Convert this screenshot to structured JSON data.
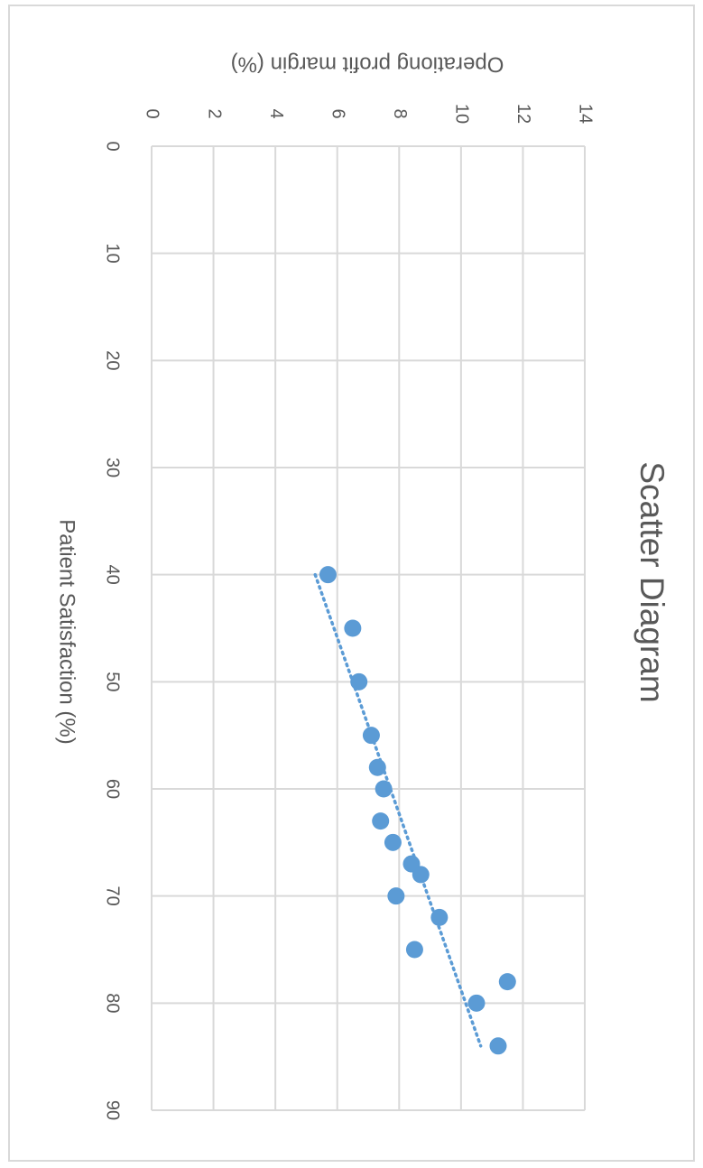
{
  "chart_data": {
    "type": "scatter",
    "title": "Scatter Diagram",
    "xlabel": "Patient Satisfaction (%)",
    "ylabel": "Operationg profit margin (%)",
    "xlim": [
      0,
      90
    ],
    "ylim": [
      0,
      14
    ],
    "x_ticks": [
      "0",
      "10",
      "20",
      "30",
      "40",
      "50",
      "60",
      "70",
      "80",
      "90"
    ],
    "y_ticks": [
      "0",
      "2",
      "4",
      "6",
      "8",
      "10",
      "12",
      "14"
    ],
    "grid": true,
    "trendline": {
      "type": "linear",
      "style": "dotted",
      "x_range": [
        40,
        84
      ]
    },
    "orientation": "rotated 90 degrees clockwise",
    "colors": {
      "marker": "#5b9bd5",
      "trendline": "#5b9bd5",
      "grid": "#d9d9d9",
      "text": "#595959"
    },
    "points": [
      {
        "x": 40,
        "y": 5.7
      },
      {
        "x": 45,
        "y": 6.5
      },
      {
        "x": 50,
        "y": 6.7
      },
      {
        "x": 55,
        "y": 7.1
      },
      {
        "x": 58,
        "y": 7.3
      },
      {
        "x": 60,
        "y": 7.5
      },
      {
        "x": 63,
        "y": 7.4
      },
      {
        "x": 65,
        "y": 7.8
      },
      {
        "x": 67,
        "y": 8.4
      },
      {
        "x": 68,
        "y": 8.7
      },
      {
        "x": 70,
        "y": 7.9
      },
      {
        "x": 72,
        "y": 9.3
      },
      {
        "x": 75,
        "y": 8.5
      },
      {
        "x": 78,
        "y": 11.5
      },
      {
        "x": 80,
        "y": 10.5
      },
      {
        "x": 84,
        "y": 11.2
      }
    ]
  }
}
